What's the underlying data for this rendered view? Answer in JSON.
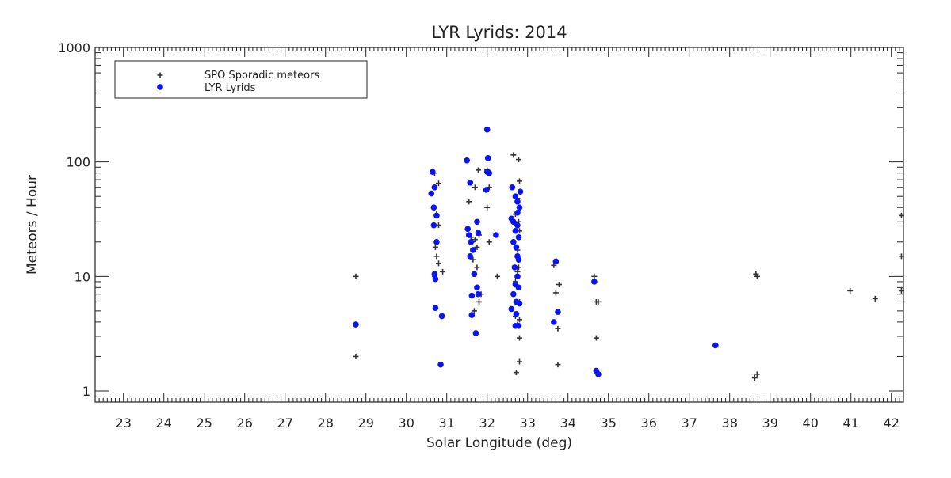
{
  "chart_data": {
    "type": "scatter",
    "title": "LYR Lyrids: 2014",
    "xlabel": "Solar Longitude (deg)",
    "ylabel": "Meteors / Hour",
    "xlim": [
      22.3,
      42.3
    ],
    "ylim": [
      0.8,
      1000
    ],
    "yscale": "log",
    "x_ticks": [
      23,
      24,
      25,
      26,
      27,
      28,
      29,
      30,
      31,
      32,
      33,
      34,
      35,
      36,
      37,
      38,
      39,
      40,
      41,
      42
    ],
    "y_ticks": [
      1,
      10,
      100,
      1000
    ],
    "legend_position": "top-left",
    "grid": false,
    "series": [
      {
        "name": "SPO Sporadic meteors",
        "marker": "plus",
        "color": "#333333",
        "points": [
          [
            28.75,
            10
          ],
          [
            28.75,
            2
          ],
          [
            30.7,
            80
          ],
          [
            30.72,
            18
          ],
          [
            30.75,
            15
          ],
          [
            30.8,
            13
          ],
          [
            30.75,
            35
          ],
          [
            30.8,
            28
          ],
          [
            30.8,
            65
          ],
          [
            30.9,
            11
          ],
          [
            30.7,
            10
          ],
          [
            31.55,
            45
          ],
          [
            31.6,
            22
          ],
          [
            31.62,
            20
          ],
          [
            31.7,
            21
          ],
          [
            31.75,
            18
          ],
          [
            31.8,
            23
          ],
          [
            31.7,
            60
          ],
          [
            31.78,
            85
          ],
          [
            31.65,
            14
          ],
          [
            31.75,
            12
          ],
          [
            31.68,
            5
          ],
          [
            31.8,
            6
          ],
          [
            31.85,
            7
          ],
          [
            32.0,
            85
          ],
          [
            32.05,
            60
          ],
          [
            32.0,
            40
          ],
          [
            32.05,
            20
          ],
          [
            32.25,
            10
          ],
          [
            32.65,
            115
          ],
          [
            32.78,
            105
          ],
          [
            32.8,
            68
          ],
          [
            32.75,
            48
          ],
          [
            32.8,
            40
          ],
          [
            32.7,
            35
          ],
          [
            32.78,
            30
          ],
          [
            32.72,
            28
          ],
          [
            32.8,
            25
          ],
          [
            32.75,
            17
          ],
          [
            32.78,
            12
          ],
          [
            32.75,
            11
          ],
          [
            32.7,
            9
          ],
          [
            32.78,
            8
          ],
          [
            32.8,
            6
          ],
          [
            32.7,
            4.5
          ],
          [
            32.8,
            4.2
          ],
          [
            32.75,
            3.8
          ],
          [
            32.8,
            2.9
          ],
          [
            32.8,
            1.8
          ],
          [
            32.72,
            1.45
          ],
          [
            33.65,
            12.5
          ],
          [
            33.7,
            7.2
          ],
          [
            33.78,
            8.5
          ],
          [
            33.75,
            3.5
          ],
          [
            33.75,
            1.7
          ],
          [
            34.65,
            10
          ],
          [
            34.7,
            6
          ],
          [
            34.75,
            6
          ],
          [
            34.7,
            2.9
          ],
          [
            38.65,
            10.5
          ],
          [
            38.68,
            10
          ],
          [
            38.62,
            1.3
          ],
          [
            38.68,
            1.4
          ],
          [
            40.98,
            7.5
          ],
          [
            41.6,
            6.4
          ],
          [
            42.25,
            34
          ],
          [
            42.25,
            15
          ],
          [
            42.25,
            7.5
          ]
        ]
      },
      {
        "name": "LYR Lyrids",
        "marker": "circle",
        "color": "#0a14f0",
        "points": [
          [
            28.75,
            3.8
          ],
          [
            30.65,
            82
          ],
          [
            30.7,
            60
          ],
          [
            30.62,
            53
          ],
          [
            30.68,
            40
          ],
          [
            30.75,
            34
          ],
          [
            30.68,
            28
          ],
          [
            30.75,
            20
          ],
          [
            30.7,
            10.5
          ],
          [
            30.72,
            9.5
          ],
          [
            30.72,
            5.3
          ],
          [
            30.88,
            4.5
          ],
          [
            30.85,
            1.7
          ],
          [
            31.5,
            103
          ],
          [
            31.58,
            66
          ],
          [
            31.52,
            26
          ],
          [
            31.55,
            23
          ],
          [
            31.6,
            20
          ],
          [
            31.65,
            17
          ],
          [
            31.58,
            15
          ],
          [
            31.68,
            10.5
          ],
          [
            31.62,
            6.8
          ],
          [
            31.62,
            4.6
          ],
          [
            31.75,
            30
          ],
          [
            31.78,
            24
          ],
          [
            31.75,
            8
          ],
          [
            31.78,
            7
          ],
          [
            31.72,
            3.2
          ],
          [
            32.0,
            192
          ],
          [
            32.02,
            108
          ],
          [
            32.0,
            82
          ],
          [
            32.05,
            80
          ],
          [
            31.98,
            57
          ],
          [
            32.22,
            23
          ],
          [
            32.62,
            60
          ],
          [
            32.7,
            50
          ],
          [
            32.6,
            32
          ],
          [
            32.65,
            30
          ],
          [
            32.75,
            28
          ],
          [
            32.7,
            25
          ],
          [
            32.78,
            22
          ],
          [
            32.65,
            20
          ],
          [
            32.72,
            18
          ],
          [
            32.75,
            15
          ],
          [
            32.78,
            14
          ],
          [
            32.68,
            12
          ],
          [
            32.75,
            10
          ],
          [
            32.7,
            8.5
          ],
          [
            32.78,
            8
          ],
          [
            32.65,
            7
          ],
          [
            32.72,
            6
          ],
          [
            32.8,
            5.8
          ],
          [
            32.6,
            5.2
          ],
          [
            32.72,
            4.7
          ],
          [
            32.7,
            3.7
          ],
          [
            32.78,
            3.7
          ],
          [
            32.75,
            36
          ],
          [
            32.8,
            40
          ],
          [
            32.82,
            55
          ],
          [
            32.75,
            45
          ],
          [
            33.7,
            13.5
          ],
          [
            33.75,
            4.9
          ],
          [
            33.65,
            4
          ],
          [
            34.65,
            9
          ],
          [
            34.7,
            1.5
          ],
          [
            34.75,
            1.4
          ],
          [
            37.65,
            2.5
          ]
        ]
      }
    ]
  }
}
